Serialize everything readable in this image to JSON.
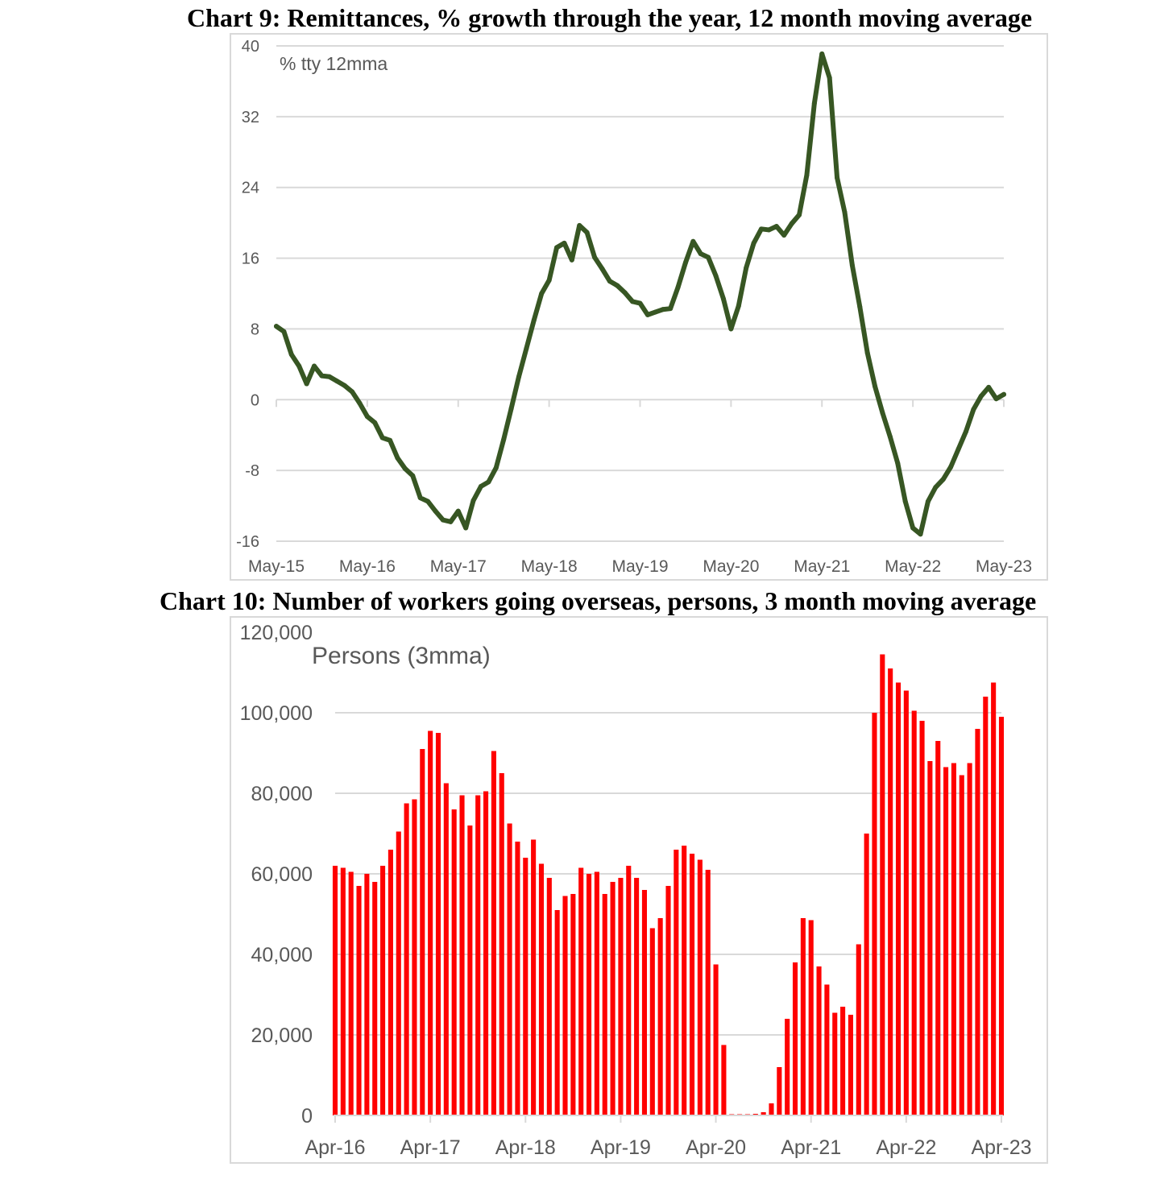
{
  "chart_data": [
    {
      "type": "line",
      "title_bold": "Chart 9: Remittances,",
      "title_rest": " % growth through the year, 12 month moving average",
      "annotation": "% tty 12mma",
      "ylim": [
        -16,
        40
      ],
      "yticks": [
        "40",
        "32",
        "24",
        "16",
        "8",
        "0",
        "-8",
        "-16"
      ],
      "xtick_labels": [
        "May-15",
        "May-16",
        "May-17",
        "May-18",
        "May-19",
        "May-20",
        "May-21",
        "May-22",
        "May-23"
      ],
      "x_start": "May-15",
      "x_end": "May-23",
      "line_color": "#375623",
      "grid": true,
      "series": [
        {
          "values": [
            8.3,
            7.7,
            5.1,
            3.8,
            1.8,
            3.8,
            2.7,
            2.6,
            2.1,
            1.6,
            0.9,
            -0.4,
            -1.9,
            -2.6,
            -4.3,
            -4.6,
            -6.6,
            -7.8,
            -8.6,
            -11.1,
            -11.5,
            -12.6,
            -13.6,
            -13.8,
            -12.6,
            -14.5,
            -11.4,
            -9.8,
            -9.3,
            -7.7,
            -4.5,
            -1.0,
            2.6,
            5.8,
            9.0,
            12.0,
            13.5,
            17.2,
            17.7,
            15.8,
            19.7,
            18.9,
            16.1,
            14.8,
            13.4,
            12.9,
            12.1,
            11.1,
            10.9,
            9.6,
            9.9,
            10.2,
            10.3,
            12.7,
            15.5,
            17.9,
            16.5,
            16.1,
            14.0,
            11.4,
            8.0,
            10.6,
            14.9,
            17.7,
            19.3,
            19.2,
            19.6,
            18.6,
            19.9,
            20.9,
            25.4,
            33.5,
            39.1,
            36.4,
            25.1,
            21.2,
            15.2,
            10.5,
            5.3,
            1.5,
            -1.5,
            -4.2,
            -7.2,
            -11.5,
            -14.5,
            -15.2,
            -11.5,
            -9.9,
            -9.0,
            -7.6,
            -5.6,
            -3.6,
            -1.1,
            0.4,
            1.4,
            0.1,
            0.6
          ]
        }
      ]
    },
    {
      "type": "bar",
      "title_bold": "Chart 10: Number of workers going overseas,",
      "title_rest": " persons, 3 month moving average",
      "annotation": "Persons (3mma)",
      "ylim": [
        0,
        120000
      ],
      "yticks": [
        "120,000",
        "100,000",
        "80,000",
        "60,000",
        "40,000",
        "20,000",
        "0"
      ],
      "xtick_labels": [
        "Apr-16",
        "Apr-17",
        "Apr-18",
        "Apr-19",
        "Apr-20",
        "Apr-21",
        "Apr-22",
        "Apr-23"
      ],
      "x_start": "Apr-16",
      "x_end": "Apr-23",
      "bar_color": "#ff0000",
      "grid": true,
      "series": [
        {
          "values": [
            62000,
            61500,
            60500,
            57000,
            60000,
            58000,
            62000,
            66000,
            70500,
            77500,
            78500,
            91000,
            95500,
            95000,
            82500,
            76000,
            79500,
            72000,
            79500,
            80500,
            90500,
            85000,
            72500,
            68000,
            64000,
            68500,
            62500,
            59000,
            51000,
            54500,
            55000,
            61500,
            60000,
            60500,
            55000,
            58000,
            59000,
            62000,
            59000,
            56000,
            46500,
            49000,
            57000,
            66000,
            67000,
            65000,
            63500,
            61000,
            37500,
            17500,
            300,
            300,
            300,
            400,
            800,
            3000,
            12000,
            24000,
            38000,
            49000,
            48500,
            37000,
            32500,
            25500,
            27000,
            25000,
            42500,
            70000,
            100000,
            114500,
            111000,
            107500,
            105500,
            100500,
            98000,
            88000,
            93000,
            86500,
            87500,
            84500,
            87500,
            96000,
            104000,
            107500,
            99000
          ]
        }
      ]
    }
  ]
}
